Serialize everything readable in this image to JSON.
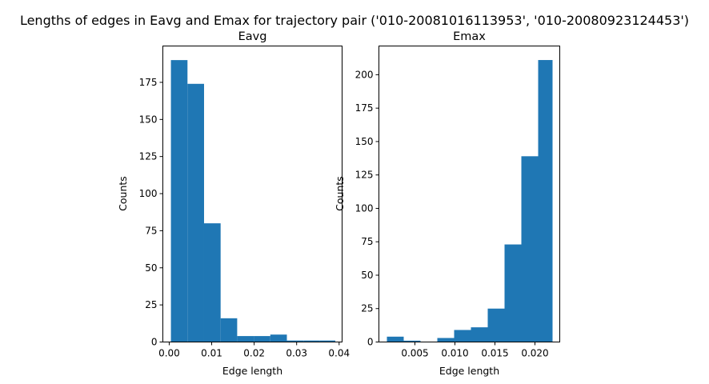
{
  "figure": {
    "title": "Lengths of edges in Eavg and Emax for trajectory pair ('010-20081016113953', '010-20080923124453')"
  },
  "chart_data": [
    {
      "type": "bar",
      "subtype": "histogram",
      "title": "Eavg",
      "xlabel": "Edge length",
      "ylabel": "Counts",
      "color": "#1f77b4",
      "xlim": [
        -0.0015,
        0.0407
      ],
      "ylim": [
        0,
        199.5
      ],
      "bin_edges": [
        0.0004,
        0.0043,
        0.0082,
        0.0121,
        0.016,
        0.0199,
        0.0238,
        0.0277,
        0.0316,
        0.0355,
        0.0391
      ],
      "counts": [
        190,
        174,
        80,
        16,
        4,
        4,
        5,
        1,
        1,
        1
      ],
      "xticks": [
        0.0,
        0.01,
        0.02,
        0.03,
        0.04
      ],
      "xtick_labels": [
        "0.00",
        "0.01",
        "0.02",
        "0.03",
        "0.04"
      ],
      "yticks": [
        0,
        25,
        50,
        75,
        100,
        125,
        150,
        175
      ],
      "ytick_labels": [
        "0",
        "25",
        "50",
        "75",
        "100",
        "125",
        "150",
        "175"
      ]
    },
    {
      "type": "bar",
      "subtype": "histogram",
      "title": "Emax",
      "xlabel": "Edge length",
      "ylabel": "Counts",
      "color": "#1f77b4",
      "xlim": [
        0.0005,
        0.0231
      ],
      "ylim": [
        0,
        221.5
      ],
      "bin_edges": [
        0.0015,
        0.0036,
        0.0057,
        0.0078,
        0.0099,
        0.012,
        0.0141,
        0.0162,
        0.0183,
        0.0204,
        0.0222
      ],
      "counts": [
        4,
        1,
        0,
        3,
        9,
        11,
        25,
        73,
        139,
        211
      ],
      "xticks": [
        0.005,
        0.01,
        0.015,
        0.02
      ],
      "xtick_labels": [
        "0.005",
        "0.010",
        "0.015",
        "0.020"
      ],
      "yticks": [
        0,
        25,
        50,
        75,
        100,
        125,
        150,
        175,
        200
      ],
      "ytick_labels": [
        "0",
        "25",
        "50",
        "75",
        "100",
        "125",
        "150",
        "175",
        "200"
      ]
    }
  ]
}
